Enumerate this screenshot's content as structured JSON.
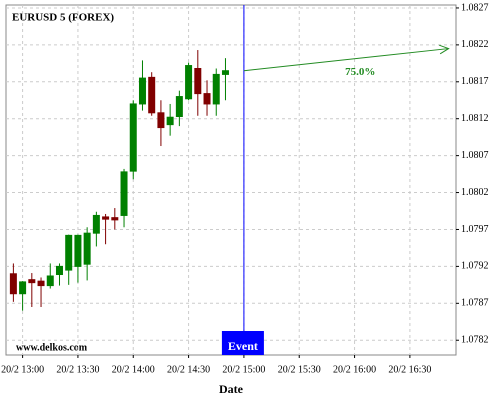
{
  "chart_data": {
    "type": "candlestick",
    "title": "EURUSD 5 (FOREX)",
    "watermark": "www.delkos.com",
    "x_label": "Date",
    "x": [
      "20/2 12:55",
      "20/2 13:00",
      "20/2 13:05",
      "20/2 13:10",
      "20/2 13:15",
      "20/2 13:20",
      "20/2 13:25",
      "20/2 13:30",
      "20/2 13:35",
      "20/2 13:40",
      "20/2 13:45",
      "20/2 13:50",
      "20/2 13:55",
      "20/2 14:00",
      "20/2 14:05",
      "20/2 14:10",
      "20/2 14:15",
      "20/2 14:20",
      "20/2 14:25",
      "20/2 14:30",
      "20/2 14:35",
      "20/2 14:40",
      "20/2 14:45",
      "20/2 14:50"
    ],
    "open": [
      1.0791,
      1.07883,
      1.07902,
      1.079,
      1.07894,
      1.07909,
      1.07915,
      1.0792,
      1.07923,
      1.07965,
      1.07987,
      1.07986,
      1.07989,
      1.08049,
      1.0814,
      1.08176,
      1.08128,
      1.08112,
      1.08123,
      1.08147,
      1.08188,
      1.08154,
      1.0814,
      1.0818
    ],
    "high": [
      1.07924,
      1.079,
      1.07911,
      1.07905,
      1.07924,
      1.07924,
      1.07963,
      1.07963,
      1.07973,
      1.07994,
      1.07991,
      1.07999,
      1.08052,
      1.08145,
      1.08199,
      1.08183,
      1.08145,
      1.0814,
      1.08158,
      1.08196,
      1.08213,
      1.08172,
      1.08188,
      1.08202
    ],
    "low": [
      1.07872,
      1.0786,
      1.07865,
      1.07865,
      1.0789,
      1.07894,
      1.07895,
      1.07898,
      1.07901,
      1.07947,
      1.0795,
      1.0797,
      1.07973,
      1.08038,
      1.08131,
      1.08124,
      1.08083,
      1.08097,
      1.0811,
      1.08145,
      1.08124,
      1.08124,
      1.08124,
      1.08145
    ],
    "close": [
      1.07883,
      1.07899,
      1.07898,
      1.07894,
      1.07907,
      1.0792,
      1.07962,
      1.07962,
      1.07965,
      1.07989,
      1.07984,
      1.07983,
      1.08048,
      1.0814,
      1.08175,
      1.08128,
      1.08108,
      1.08122,
      1.0815,
      1.08192,
      1.08154,
      1.0814,
      1.0818,
      1.08185
    ],
    "up_color": "#008000",
    "down_color": "#800000",
    "xlim": [
      "20/2 12:51",
      "20/2 16:55"
    ],
    "xticks": [
      "20/2 13:00",
      "20/2 13:30",
      "20/2 14:00",
      "20/2 14:30",
      "20/2 15:00",
      "20/2 15:30",
      "20/2 16:00",
      "20/2 16:30"
    ],
    "ylim": [
      1.078,
      1.08274
    ],
    "yticks": [
      1.0782,
      1.0787,
      1.0792,
      1.0797,
      1.0802,
      1.0807,
      1.0812,
      1.0817,
      1.0822,
      1.0827
    ],
    "grid": true,
    "event": {
      "x": "20/2 15:00",
      "label": "Event",
      "color": "#0000ff"
    },
    "arrow": {
      "x": [
        "20/2 15:00",
        "20/2 16:51"
      ],
      "y": [
        1.08185,
        1.08215
      ],
      "label": "75.0%",
      "color": "#228b22"
    }
  }
}
